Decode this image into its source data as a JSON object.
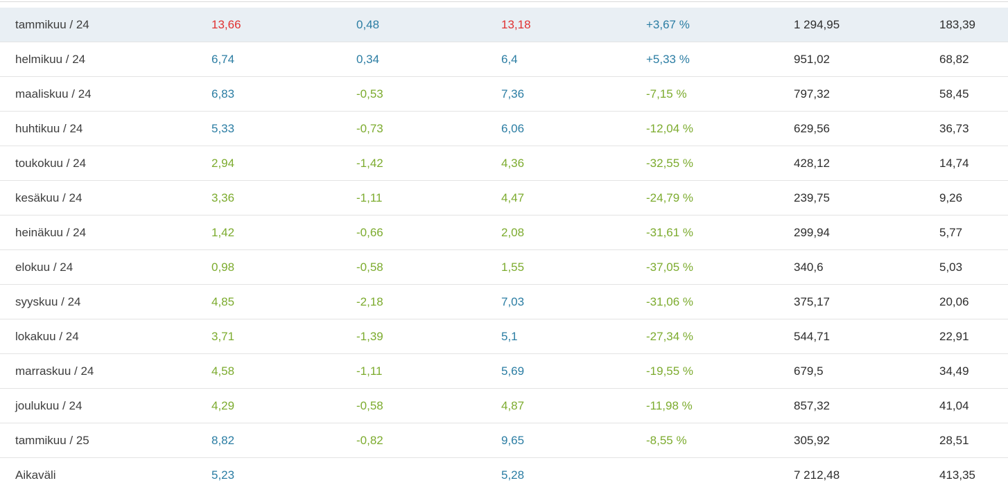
{
  "colors": {
    "positive_red": "#e03232",
    "neutral_blue": "#2b7da3",
    "negative_green": "#7cab2e",
    "plain_dark": "#2d2d2d",
    "highlight_row_bg": "#e9eff4",
    "row_border": "#e3e3e3"
  },
  "table": {
    "rows": [
      {
        "label": "tammikuu / 24",
        "highlighted": true,
        "cells": [
          {
            "text": "13,66",
            "color": "red"
          },
          {
            "text": "0,48",
            "color": "blue"
          },
          {
            "text": "13,18",
            "color": "red"
          },
          {
            "text": "+3,67 %",
            "color": "blue"
          },
          {
            "text": "1 294,95",
            "color": "dark"
          },
          {
            "text": "183,39",
            "color": "dark"
          }
        ]
      },
      {
        "label": "helmikuu / 24",
        "highlighted": false,
        "cells": [
          {
            "text": "6,74",
            "color": "blue"
          },
          {
            "text": "0,34",
            "color": "blue"
          },
          {
            "text": "6,4",
            "color": "blue"
          },
          {
            "text": "+5,33 %",
            "color": "blue"
          },
          {
            "text": "951,02",
            "color": "dark"
          },
          {
            "text": "68,82",
            "color": "dark"
          }
        ]
      },
      {
        "label": "maaliskuu / 24",
        "highlighted": false,
        "cells": [
          {
            "text": "6,83",
            "color": "blue"
          },
          {
            "text": "-0,53",
            "color": "green"
          },
          {
            "text": "7,36",
            "color": "blue"
          },
          {
            "text": "-7,15 %",
            "color": "green"
          },
          {
            "text": "797,32",
            "color": "dark"
          },
          {
            "text": "58,45",
            "color": "dark"
          }
        ]
      },
      {
        "label": "huhtikuu / 24",
        "highlighted": false,
        "cells": [
          {
            "text": "5,33",
            "color": "blue"
          },
          {
            "text": "-0,73",
            "color": "green"
          },
          {
            "text": "6,06",
            "color": "blue"
          },
          {
            "text": "-12,04 %",
            "color": "green"
          },
          {
            "text": "629,56",
            "color": "dark"
          },
          {
            "text": "36,73",
            "color": "dark"
          }
        ]
      },
      {
        "label": "toukokuu / 24",
        "highlighted": false,
        "cells": [
          {
            "text": "2,94",
            "color": "green"
          },
          {
            "text": "-1,42",
            "color": "green"
          },
          {
            "text": "4,36",
            "color": "green"
          },
          {
            "text": "-32,55 %",
            "color": "green"
          },
          {
            "text": "428,12",
            "color": "dark"
          },
          {
            "text": "14,74",
            "color": "dark"
          }
        ]
      },
      {
        "label": "kesäkuu / 24",
        "highlighted": false,
        "cells": [
          {
            "text": "3,36",
            "color": "green"
          },
          {
            "text": "-1,11",
            "color": "green"
          },
          {
            "text": "4,47",
            "color": "green"
          },
          {
            "text": "-24,79 %",
            "color": "green"
          },
          {
            "text": "239,75",
            "color": "dark"
          },
          {
            "text": "9,26",
            "color": "dark"
          }
        ]
      },
      {
        "label": "heinäkuu / 24",
        "highlighted": false,
        "cells": [
          {
            "text": "1,42",
            "color": "green"
          },
          {
            "text": "-0,66",
            "color": "green"
          },
          {
            "text": "2,08",
            "color": "green"
          },
          {
            "text": "-31,61 %",
            "color": "green"
          },
          {
            "text": "299,94",
            "color": "dark"
          },
          {
            "text": "5,77",
            "color": "dark"
          }
        ]
      },
      {
        "label": "elokuu / 24",
        "highlighted": false,
        "cells": [
          {
            "text": "0,98",
            "color": "green"
          },
          {
            "text": "-0,58",
            "color": "green"
          },
          {
            "text": "1,55",
            "color": "green"
          },
          {
            "text": "-37,05 %",
            "color": "green"
          },
          {
            "text": "340,6",
            "color": "dark"
          },
          {
            "text": "5,03",
            "color": "dark"
          }
        ]
      },
      {
        "label": "syyskuu / 24",
        "highlighted": false,
        "cells": [
          {
            "text": "4,85",
            "color": "green"
          },
          {
            "text": "-2,18",
            "color": "green"
          },
          {
            "text": "7,03",
            "color": "blue"
          },
          {
            "text": "-31,06 %",
            "color": "green"
          },
          {
            "text": "375,17",
            "color": "dark"
          },
          {
            "text": "20,06",
            "color": "dark"
          }
        ]
      },
      {
        "label": "lokakuu / 24",
        "highlighted": false,
        "cells": [
          {
            "text": "3,71",
            "color": "green"
          },
          {
            "text": "-1,39",
            "color": "green"
          },
          {
            "text": "5,1",
            "color": "blue"
          },
          {
            "text": "-27,34 %",
            "color": "green"
          },
          {
            "text": "544,71",
            "color": "dark"
          },
          {
            "text": "22,91",
            "color": "dark"
          }
        ]
      },
      {
        "label": "marraskuu / 24",
        "highlighted": false,
        "cells": [
          {
            "text": "4,58",
            "color": "green"
          },
          {
            "text": "-1,11",
            "color": "green"
          },
          {
            "text": "5,69",
            "color": "blue"
          },
          {
            "text": "-19,55 %",
            "color": "green"
          },
          {
            "text": "679,5",
            "color": "dark"
          },
          {
            "text": "34,49",
            "color": "dark"
          }
        ]
      },
      {
        "label": "joulukuu / 24",
        "highlighted": false,
        "cells": [
          {
            "text": "4,29",
            "color": "green"
          },
          {
            "text": "-0,58",
            "color": "green"
          },
          {
            "text": "4,87",
            "color": "green"
          },
          {
            "text": "-11,98 %",
            "color": "green"
          },
          {
            "text": "857,32",
            "color": "dark"
          },
          {
            "text": "41,04",
            "color": "dark"
          }
        ]
      },
      {
        "label": "tammikuu / 25",
        "highlighted": false,
        "cells": [
          {
            "text": "8,82",
            "color": "blue"
          },
          {
            "text": "-0,82",
            "color": "green"
          },
          {
            "text": "9,65",
            "color": "blue"
          },
          {
            "text": "-8,55 %",
            "color": "green"
          },
          {
            "text": "305,92",
            "color": "dark"
          },
          {
            "text": "28,51",
            "color": "dark"
          }
        ]
      },
      {
        "label": "Aikaväli",
        "highlighted": false,
        "cells": [
          {
            "text": "5,23",
            "color": "blue"
          },
          {
            "text": "",
            "color": "dark"
          },
          {
            "text": "5,28",
            "color": "blue"
          },
          {
            "text": "",
            "color": "dark"
          },
          {
            "text": "7 212,48",
            "color": "dark"
          },
          {
            "text": "413,35",
            "color": "dark"
          }
        ]
      }
    ]
  }
}
